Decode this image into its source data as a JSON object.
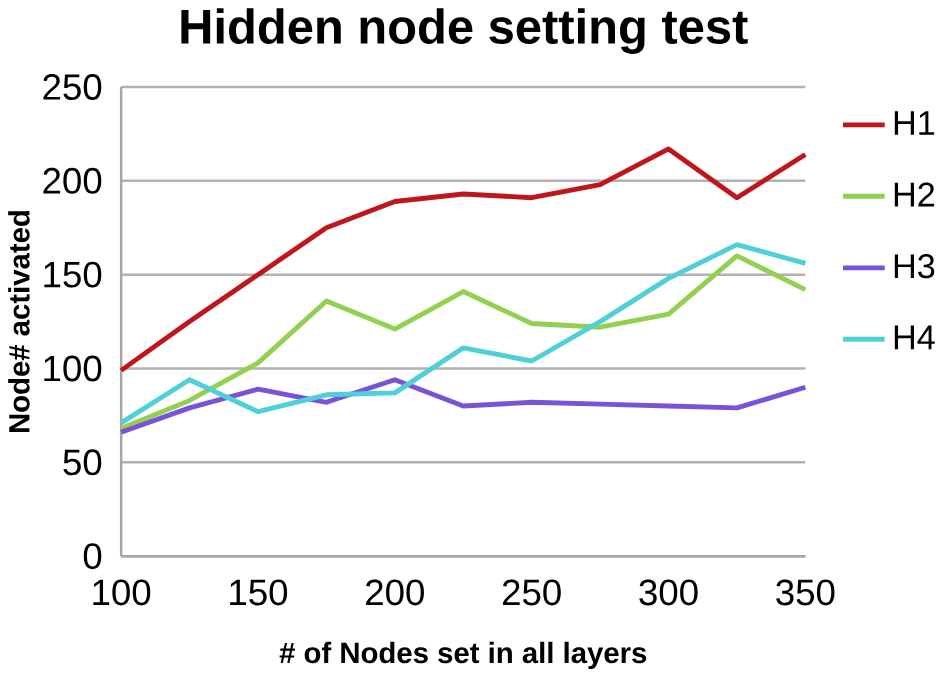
{
  "chart_data": {
    "type": "line",
    "title": "Hidden node setting test",
    "xlabel": "# of Nodes set in all layers",
    "ylabel": "Node# activated",
    "x": [
      100,
      125,
      150,
      175,
      200,
      225,
      250,
      275,
      300,
      325,
      350
    ],
    "series": [
      {
        "name": "H1",
        "color": "#c0161b",
        "values": [
          99,
          125,
          150,
          175,
          189,
          193,
          191,
          198,
          217,
          191,
          214
        ]
      },
      {
        "name": "H2",
        "color": "#92d050",
        "values": [
          68,
          83,
          103,
          136,
          121,
          141,
          124,
          122,
          129,
          160,
          142
        ]
      },
      {
        "name": "H3",
        "color": "#7a52d6",
        "values": [
          66,
          79,
          89,
          82,
          94,
          80,
          82,
          81,
          80,
          79,
          90
        ]
      },
      {
        "name": "H4",
        "color": "#4fd0d8",
        "values": [
          71,
          94,
          77,
          86,
          87,
          111,
          104,
          125,
          148,
          166,
          156
        ]
      }
    ],
    "xlim": [
      100,
      350
    ],
    "ylim": [
      0,
      250
    ],
    "xticks": [
      100,
      150,
      200,
      250,
      300,
      350
    ],
    "yticks": [
      0,
      50,
      100,
      150,
      200,
      250
    ],
    "grid": "y",
    "legend": "right",
    "marker": "none",
    "line_style": "solid"
  }
}
